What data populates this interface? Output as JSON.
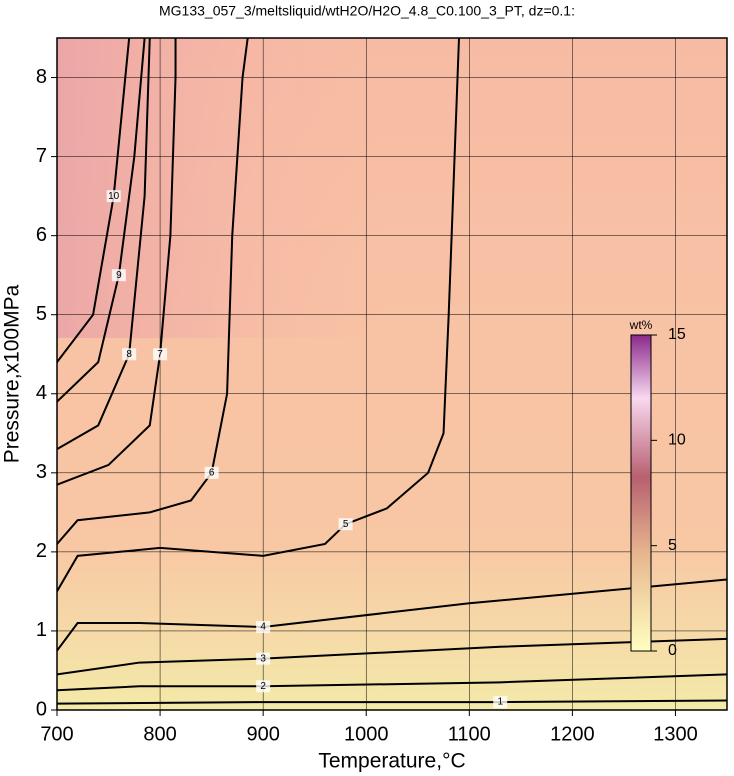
{
  "chart_data": {
    "type": "contour",
    "title": "MG133_057_3/meltsliquid/wtH2O/H2O_4.8_C0.100_3_PT, dz=0.1:",
    "x_label": "Temperature,°C",
    "y_label": "Pressure,x100MPa",
    "xlim": [
      700,
      1350
    ],
    "ylim": [
      0,
      8.5
    ],
    "xticks": [
      700,
      800,
      900,
      1000,
      1100,
      1200,
      1300
    ],
    "yticks": [
      0,
      1,
      2,
      3,
      4,
      5,
      6,
      7,
      8
    ],
    "grid": true,
    "line_color": "#000000",
    "colorbar": {
      "label": "wt%",
      "lim": [
        0,
        15
      ],
      "ticks": [
        0,
        5,
        10,
        15
      ]
    },
    "series": [
      {
        "name": "1",
        "x": [
          700,
          900,
          1130,
          1350
        ],
        "y": [
          0.08,
          0.1,
          0.1,
          0.12
        ]
      },
      {
        "name": "2",
        "x": [
          700,
          780,
          900,
          1130,
          1350
        ],
        "y": [
          0.25,
          0.3,
          0.3,
          0.35,
          0.45
        ]
      },
      {
        "name": "3",
        "x": [
          700,
          780,
          900,
          1130,
          1350
        ],
        "y": [
          0.45,
          0.6,
          0.65,
          0.8,
          0.9
        ]
      },
      {
        "name": "4",
        "x": [
          700,
          720,
          780,
          900,
          1100,
          1350
        ],
        "y": [
          0.75,
          1.1,
          1.1,
          1.05,
          1.35,
          1.65
        ]
      },
      {
        "name": "5",
        "x": [
          700,
          720,
          800,
          900,
          960,
          980,
          1020,
          1060,
          1075,
          1080,
          1090
        ],
        "y": [
          1.5,
          1.95,
          2.05,
          1.95,
          2.1,
          2.35,
          2.55,
          3.0,
          3.5,
          5,
          8.5
        ]
      },
      {
        "name": "6",
        "x": [
          700,
          720,
          790,
          830,
          850,
          865,
          870,
          880,
          885
        ],
        "y": [
          2.1,
          2.4,
          2.5,
          2.65,
          3.0,
          4,
          6,
          8,
          8.5
        ]
      },
      {
        "name": "7",
        "x": [
          700,
          750,
          790,
          800,
          810,
          815,
          815
        ],
        "y": [
          2.85,
          3.1,
          3.6,
          4.5,
          6,
          8,
          8.5
        ]
      },
      {
        "name": "8",
        "x": [
          700,
          740,
          770,
          785,
          790
        ],
        "y": [
          3.3,
          3.6,
          4.5,
          6.5,
          8.5
        ]
      },
      {
        "name": "9",
        "x": [
          700,
          740,
          760,
          775,
          785
        ],
        "y": [
          3.9,
          4.4,
          5.5,
          7,
          8.5
        ]
      },
      {
        "name": "10",
        "x": [
          700,
          735,
          755,
          770
        ],
        "y": [
          4.4,
          5,
          6.5,
          8.5
        ]
      }
    ]
  }
}
